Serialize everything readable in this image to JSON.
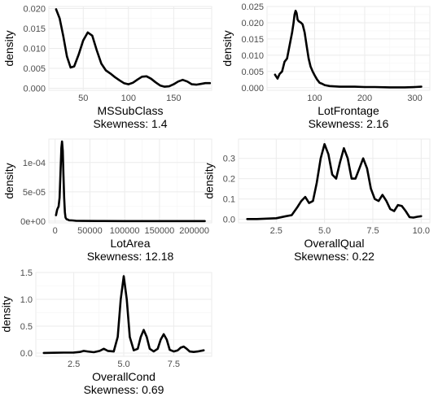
{
  "chart_data": [
    {
      "type": "line",
      "variable": "MSSubClass",
      "xlabel": "MSSubClass",
      "subtitle": "Skewness: 1.4",
      "ylabel": "density",
      "xlim": [
        12,
        192
      ],
      "ylim": [
        -0.0005,
        0.0205
      ],
      "xticks": [
        50,
        100,
        150
      ],
      "xtick_labels": [
        "50",
        "100",
        "150"
      ],
      "yticks": [
        0,
        0.005,
        0.01,
        0.015,
        0.02
      ],
      "ytick_labels": [
        "0.000",
        "0.005",
        "0.010",
        "0.015",
        "0.020"
      ],
      "grid": true,
      "x": [
        20,
        24,
        28,
        32,
        36,
        40,
        45,
        50,
        55,
        60,
        65,
        70,
        75,
        80,
        85,
        90,
        95,
        100,
        105,
        110,
        115,
        120,
        125,
        130,
        135,
        140,
        145,
        150,
        155,
        160,
        165,
        170,
        175,
        180,
        185,
        190
      ],
      "y": [
        0.0198,
        0.0175,
        0.013,
        0.008,
        0.0052,
        0.0055,
        0.0085,
        0.012,
        0.014,
        0.0132,
        0.0095,
        0.0062,
        0.0045,
        0.0037,
        0.0028,
        0.002,
        0.0013,
        0.001,
        0.0014,
        0.0022,
        0.0029,
        0.003,
        0.0024,
        0.0015,
        0.0007,
        0.0004,
        0.0005,
        0.001,
        0.0017,
        0.0021,
        0.0017,
        0.001,
        0.0009,
        0.0011,
        0.0013,
        0.0013
      ]
    },
    {
      "type": "line",
      "variable": "LotFrontage",
      "xlabel": "LotFrontage",
      "subtitle": "Skewness: 2.16",
      "ylabel": "density",
      "xlim": [
        5,
        330
      ],
      "ylim": [
        -0.0008,
        0.025
      ],
      "xticks": [
        100,
        200,
        300
      ],
      "xtick_labels": [
        "100",
        "200",
        "300"
      ],
      "yticks": [
        0,
        0.005,
        0.01,
        0.015,
        0.02,
        0.025
      ],
      "ytick_labels": [
        "0.000",
        "0.005",
        "0.010",
        "0.015",
        "0.020",
        "0.025"
      ],
      "grid": true,
      "x": [
        21,
        26,
        30,
        35,
        40,
        45,
        50,
        55,
        58,
        60,
        62,
        64,
        66,
        68,
        70,
        73,
        76,
        80,
        84,
        88,
        92,
        96,
        100,
        105,
        110,
        115,
        120,
        130,
        140,
        150,
        160,
        170,
        180,
        200,
        220,
        250,
        280,
        300,
        313
      ],
      "y": [
        0.004,
        0.0028,
        0.0042,
        0.005,
        0.008,
        0.009,
        0.013,
        0.017,
        0.02,
        0.0225,
        0.0237,
        0.023,
        0.021,
        0.0205,
        0.0203,
        0.02,
        0.0195,
        0.017,
        0.013,
        0.009,
        0.0065,
        0.005,
        0.0038,
        0.0025,
        0.0015,
        0.0012,
        0.0008,
        0.0005,
        0.0004,
        0.0003,
        0.0003,
        0.0003,
        0.0003,
        0.0002,
        0.0002,
        0.0001,
        0.0001,
        0.0002,
        0.0003
      ]
    },
    {
      "type": "line",
      "variable": "LotArea",
      "xlabel": "LotArea",
      "subtitle": "Skewness: 12.18",
      "ylabel": "density",
      "xlim": [
        -9000,
        225000
      ],
      "ylim": [
        -3e-06,
        0.00014
      ],
      "xticks": [
        0,
        50000,
        100000,
        150000,
        200000
      ],
      "xtick_labels": [
        "0",
        "50000",
        "100000",
        "150000",
        "200000"
      ],
      "yticks": [
        0,
        5e-05,
        0.0001
      ],
      "ytick_labels": [
        "0e+00",
        "5e-05",
        "1e-04"
      ],
      "grid": true,
      "x": [
        1300,
        3000,
        5000,
        6500,
        8000,
        9000,
        10000,
        11000,
        12000,
        13000,
        14000,
        15000,
        16000,
        17000,
        18500,
        20000,
        25000,
        30000,
        40000,
        60000,
        100000,
        150000,
        200000,
        215000
      ],
      "y": [
        1e-05,
        2e-05,
        2.5e-05,
        4e-05,
        9e-05,
        0.000125,
        0.000136,
        0.00012,
        8e-05,
        4e-05,
        1.5e-05,
        6e-06,
        4e-06,
        3e-06,
        2.5e-06,
        1.5e-06,
        1.2e-06,
        6e-07,
        3e-07,
        2e-07,
        1e-07,
        1e-07,
        1e-07,
        1e-07
      ]
    },
    {
      "type": "line",
      "variable": "OverallQual",
      "xlabel": "OverallQual",
      "subtitle": "Skewness: 0.22",
      "ylabel": "density",
      "xlim": [
        0.55,
        10.45
      ],
      "ylim": [
        -0.018,
        0.395
      ],
      "xticks": [
        2.5,
        5.0,
        7.5,
        10.0
      ],
      "xtick_labels": [
        "2.5",
        "5.0",
        "7.5",
        "10.0"
      ],
      "yticks": [
        0,
        0.1,
        0.2,
        0.3
      ],
      "ytick_labels": [
        "0.0",
        "0.1",
        "0.2",
        "0.3"
      ],
      "grid": true,
      "x": [
        1,
        1.5,
        2,
        2.5,
        3,
        3.3,
        3.6,
        3.8,
        4.0,
        4.2,
        4.4,
        4.6,
        4.8,
        5.0,
        5.2,
        5.4,
        5.6,
        5.8,
        6.0,
        6.2,
        6.4,
        6.6,
        6.8,
        7.0,
        7.2,
        7.4,
        7.6,
        7.8,
        8.0,
        8.2,
        8.4,
        8.6,
        8.8,
        9.0,
        9.2,
        9.4,
        9.6,
        9.8,
        10.0
      ],
      "y": [
        0.001,
        0.001,
        0.003,
        0.005,
        0.015,
        0.02,
        0.06,
        0.09,
        0.11,
        0.08,
        0.09,
        0.18,
        0.3,
        0.37,
        0.32,
        0.22,
        0.2,
        0.28,
        0.35,
        0.3,
        0.2,
        0.2,
        0.25,
        0.3,
        0.25,
        0.15,
        0.1,
        0.09,
        0.12,
        0.09,
        0.05,
        0.04,
        0.07,
        0.065,
        0.04,
        0.01,
        0.008,
        0.012,
        0.015
      ]
    },
    {
      "type": "line",
      "variable": "OverallCond",
      "xlabel": "OverallCond",
      "subtitle": "Skewness: 0.69",
      "ylabel": "density",
      "xlim": [
        0.6,
        9.4
      ],
      "ylim": [
        -0.06,
        1.5
      ],
      "xticks": [
        2.5,
        5.0,
        7.5
      ],
      "xtick_labels": [
        "2.5",
        "5.0",
        "7.5"
      ],
      "yticks": [
        0,
        0.5,
        1.0,
        1.5
      ],
      "ytick_labels": [
        "0.0",
        "0.5",
        "1.0",
        "1.5"
      ],
      "grid": true,
      "x": [
        1,
        1.5,
        2,
        2.5,
        2.8,
        3.0,
        3.2,
        3.5,
        3.8,
        4.0,
        4.2,
        4.5,
        4.7,
        4.85,
        5.0,
        5.15,
        5.3,
        5.5,
        5.7,
        5.85,
        6.0,
        6.15,
        6.3,
        6.5,
        6.7,
        6.85,
        7.0,
        7.15,
        7.3,
        7.5,
        7.7,
        7.85,
        8.0,
        8.15,
        8.3,
        8.5,
        8.7,
        9.0
      ],
      "y": [
        0.002,
        0.005,
        0.008,
        0.01,
        0.02,
        0.04,
        0.03,
        0.015,
        0.04,
        0.08,
        0.04,
        0.03,
        0.3,
        1.0,
        1.43,
        1.0,
        0.3,
        0.05,
        0.08,
        0.3,
        0.43,
        0.3,
        0.08,
        0.03,
        0.08,
        0.25,
        0.35,
        0.25,
        0.06,
        0.03,
        0.05,
        0.1,
        0.12,
        0.08,
        0.03,
        0.02,
        0.03,
        0.05
      ]
    }
  ]
}
